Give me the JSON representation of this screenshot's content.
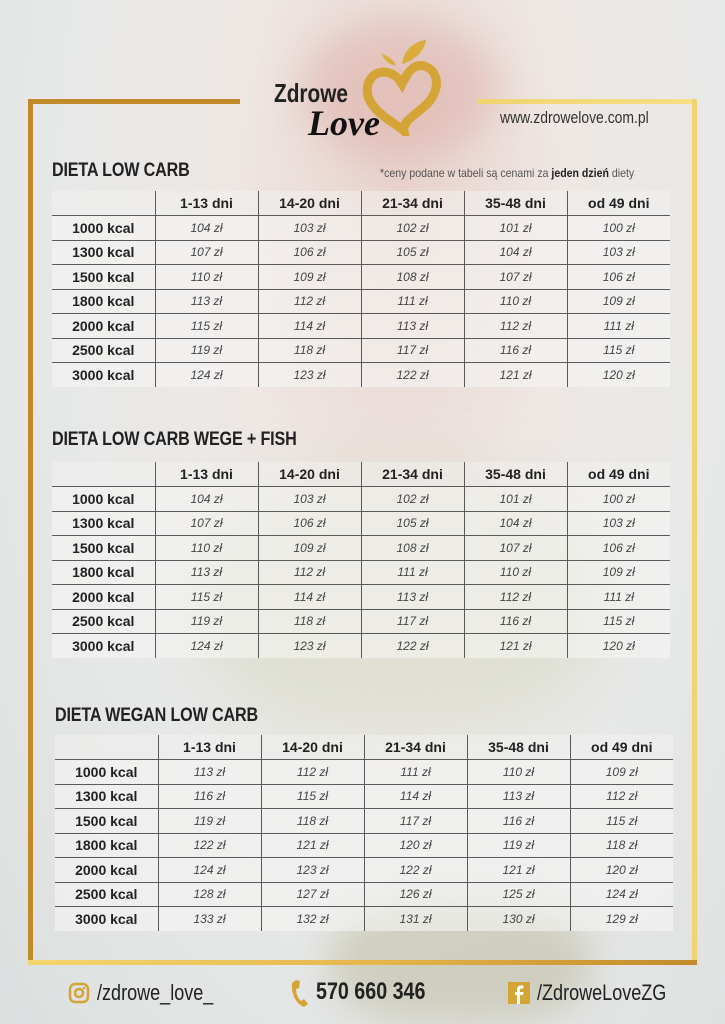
{
  "brand": {
    "logo_line1": "Zdrowe",
    "logo_line2": "Love",
    "url": "www.zdrowelove.com.pl",
    "gold": "#c48a2a"
  },
  "note": {
    "prefix": "*ceny podane w tabeli są cenami za ",
    "bold": "jeden dzień",
    "suffix": " diety"
  },
  "columns": [
    "1-13 dni",
    "14-20 dni",
    "21-34 dni",
    "35-48 dni",
    "od 49 dni"
  ],
  "tables": [
    {
      "title": "DIETA LOW CARB",
      "rows": [
        {
          "kcal": "1000 kcal",
          "prices": [
            "104 zł",
            "103 zł",
            "102 zł",
            "101 zł",
            "100 zł"
          ]
        },
        {
          "kcal": "1300 kcal",
          "prices": [
            "107 zł",
            "106 zł",
            "105 zł",
            "104 zł",
            "103 zł"
          ]
        },
        {
          "kcal": "1500 kcal",
          "prices": [
            "110 zł",
            "109 zł",
            "108 zł",
            "107 zł",
            "106 zł"
          ]
        },
        {
          "kcal": "1800 kcal",
          "prices": [
            "113 zł",
            "112 zł",
            "111 zł",
            "110 zł",
            "109 zł"
          ]
        },
        {
          "kcal": "2000 kcal",
          "prices": [
            "115 zł",
            "114 zł",
            "113 zł",
            "112 zł",
            "111 zł"
          ]
        },
        {
          "kcal": "2500 kcal",
          "prices": [
            "119 zł",
            "118 zł",
            "117 zł",
            "116 zł",
            "115 zł"
          ]
        },
        {
          "kcal": "3000 kcal",
          "prices": [
            "124 zł",
            "123 zł",
            "122 zł",
            "121 zł",
            "120 zł"
          ]
        }
      ]
    },
    {
      "title": "DIETA LOW CARB WEGE + FISH",
      "rows": [
        {
          "kcal": "1000 kcal",
          "prices": [
            "104 zł",
            "103 zł",
            "102 zł",
            "101 zł",
            "100 zł"
          ]
        },
        {
          "kcal": "1300 kcal",
          "prices": [
            "107 zł",
            "106 zł",
            "105 zł",
            "104 zł",
            "103 zł"
          ]
        },
        {
          "kcal": "1500 kcal",
          "prices": [
            "110 zł",
            "109 zł",
            "108 zł",
            "107 zł",
            "106 zł"
          ]
        },
        {
          "kcal": "1800 kcal",
          "prices": [
            "113 zł",
            "112 zł",
            "111 zł",
            "110 zł",
            "109 zł"
          ]
        },
        {
          "kcal": "2000 kcal",
          "prices": [
            "115 zł",
            "114 zł",
            "113 zł",
            "112 zł",
            "111 zł"
          ]
        },
        {
          "kcal": "2500 kcal",
          "prices": [
            "119 zł",
            "118 zł",
            "117 zł",
            "116 zł",
            "115 zł"
          ]
        },
        {
          "kcal": "3000 kcal",
          "prices": [
            "124 zł",
            "123 zł",
            "122 zł",
            "121 zł",
            "120 zł"
          ]
        }
      ]
    },
    {
      "title": "DIETA WEGAN LOW CARB",
      "rows": [
        {
          "kcal": "1000 kcal",
          "prices": [
            "113 zł",
            "112 zł",
            "111 zł",
            "110 zł",
            "109 zł"
          ]
        },
        {
          "kcal": "1300 kcal",
          "prices": [
            "116 zł",
            "115 zł",
            "114 zł",
            "113 zł",
            "112 zł"
          ]
        },
        {
          "kcal": "1500 kcal",
          "prices": [
            "119 zł",
            "118 zł",
            "117 zł",
            "116 zł",
            "115 zł"
          ]
        },
        {
          "kcal": "1800 kcal",
          "prices": [
            "122 zł",
            "121 zł",
            "120 zł",
            "119 zł",
            "118 zł"
          ]
        },
        {
          "kcal": "2000 kcal",
          "prices": [
            "124 zł",
            "123 zł",
            "122 zł",
            "121 zł",
            "120 zł"
          ]
        },
        {
          "kcal": "2500 kcal",
          "prices": [
            "128 zł",
            "127 zł",
            "126 zł",
            "125 zł",
            "124 zł"
          ]
        },
        {
          "kcal": "3000 kcal",
          "prices": [
            "133 zł",
            "132 zł",
            "131 zł",
            "130 zł",
            "129 zł"
          ]
        }
      ]
    }
  ],
  "footer": {
    "instagram": "/zdrowe_love_",
    "phone": "570 660 346",
    "facebook": "/ZdroweLoveZG",
    "icons": [
      "instagram-icon",
      "phone-icon",
      "facebook-icon"
    ]
  }
}
